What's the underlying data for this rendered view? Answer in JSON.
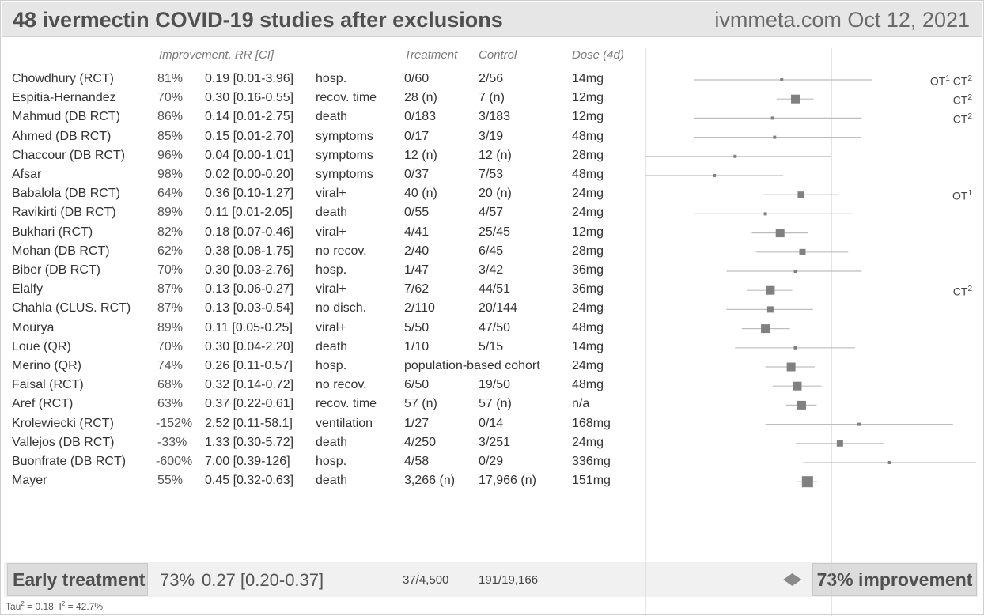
{
  "header": {
    "title": "48 ivermectin COVID-19 studies after exclusions",
    "source": "ivmmeta.com Oct 12, 2021"
  },
  "columns": {
    "improvement": "Improvement, RR [CI]",
    "treatment": "Treatment",
    "control": "Control",
    "dose": "Dose (4d)"
  },
  "chart_data": {
    "type": "forest",
    "x_scale": "log",
    "null_value": 1.0,
    "rows": [
      {
        "study": "Chowdhury (RCT)",
        "improvement": "81%",
        "rr_ci": "0.19 [0.01-3.96]",
        "outcome": "hosp.",
        "treatment": "0/60",
        "control": "2/56",
        "dose": "14mg",
        "rr": 0.19,
        "lo": 0.01,
        "hi": 3.96,
        "marker_size": 1,
        "notes": [
          "OT",
          "1",
          "CT",
          "2"
        ]
      },
      {
        "study": "Espitia-Hernandez",
        "improvement": "70%",
        "rr_ci": "0.30 [0.16-0.55]",
        "outcome": "recov. time",
        "treatment": "28 (n)",
        "control": "7 (n)",
        "dose": "12mg",
        "rr": 0.3,
        "lo": 0.16,
        "hi": 0.55,
        "marker_size": 3,
        "notes": [
          "",
          "",
          "CT",
          "2"
        ]
      },
      {
        "study": "Mahmud (DB RCT)",
        "improvement": "86%",
        "rr_ci": "0.14 [0.01-2.75]",
        "outcome": "death",
        "treatment": "0/183",
        "control": "3/183",
        "dose": "12mg",
        "rr": 0.14,
        "lo": 0.01,
        "hi": 2.75,
        "marker_size": 1,
        "notes": [
          "",
          "",
          "CT",
          "2"
        ]
      },
      {
        "study": "Ahmed (DB RCT)",
        "improvement": "85%",
        "rr_ci": "0.15 [0.01-2.70]",
        "outcome": "symptoms",
        "treatment": "0/17",
        "control": "3/19",
        "dose": "48mg",
        "rr": 0.15,
        "lo": 0.01,
        "hi": 2.7,
        "marker_size": 1,
        "notes": []
      },
      {
        "study": "Chaccour (DB RCT)",
        "improvement": "96%",
        "rr_ci": "0.04 [0.00-1.01]",
        "outcome": "symptoms",
        "treatment": "12 (n)",
        "control": "12 (n)",
        "dose": "28mg",
        "rr": 0.04,
        "lo": 0.002,
        "hi": 1.01,
        "marker_size": 1,
        "notes": []
      },
      {
        "study": "Afsar",
        "improvement": "98%",
        "rr_ci": "0.02 [0.00-0.20]",
        "outcome": "symptoms",
        "treatment": "0/37",
        "control": "7/53",
        "dose": "48mg",
        "rr": 0.02,
        "lo": 0.002,
        "hi": 0.2,
        "marker_size": 1,
        "notes": []
      },
      {
        "study": "Babalola (DB RCT)",
        "improvement": "64%",
        "rr_ci": "0.36 [0.10-1.27]",
        "outcome": "viral+",
        "treatment": "40 (n)",
        "control": "20 (n)",
        "dose": "24mg",
        "rr": 0.36,
        "lo": 0.1,
        "hi": 1.27,
        "marker_size": 2,
        "notes": [
          "OT",
          "1",
          "",
          ""
        ]
      },
      {
        "study": "Ravikirti (DB RCT)",
        "improvement": "89%",
        "rr_ci": "0.11 [0.01-2.05]",
        "outcome": "death",
        "treatment": "0/55",
        "control": "4/57",
        "dose": "24mg",
        "rr": 0.11,
        "lo": 0.01,
        "hi": 2.05,
        "marker_size": 1,
        "notes": []
      },
      {
        "study": "Bukhari (RCT)",
        "improvement": "82%",
        "rr_ci": "0.18 [0.07-0.46]",
        "outcome": "viral+",
        "treatment": "4/41",
        "control": "25/45",
        "dose": "12mg",
        "rr": 0.18,
        "lo": 0.07,
        "hi": 0.46,
        "marker_size": 3,
        "notes": []
      },
      {
        "study": "Mohan (DB RCT)",
        "improvement": "62%",
        "rr_ci": "0.38 [0.08-1.75]",
        "outcome": "no recov.",
        "treatment": "2/40",
        "control": "6/45",
        "dose": "28mg",
        "rr": 0.38,
        "lo": 0.08,
        "hi": 1.75,
        "marker_size": 2,
        "notes": []
      },
      {
        "study": "Biber (DB RCT)",
        "improvement": "70%",
        "rr_ci": "0.30 [0.03-2.76]",
        "outcome": "hosp.",
        "treatment": "1/47",
        "control": "3/42",
        "dose": "36mg",
        "rr": 0.3,
        "lo": 0.03,
        "hi": 2.76,
        "marker_size": 1,
        "notes": []
      },
      {
        "study": "Elalfy",
        "improvement": "87%",
        "rr_ci": "0.13 [0.06-0.27]",
        "outcome": "viral+",
        "treatment": "7/62",
        "control": "44/51",
        "dose": "36mg",
        "rr": 0.13,
        "lo": 0.06,
        "hi": 0.27,
        "marker_size": 3,
        "notes": [
          "",
          "",
          "CT",
          "2"
        ]
      },
      {
        "study": "Chahla (CLUS. RCT)",
        "improvement": "87%",
        "rr_ci": "0.13 [0.03-0.54]",
        "outcome": "no disch.",
        "treatment": "2/110",
        "control": "20/144",
        "dose": "24mg",
        "rr": 0.13,
        "lo": 0.03,
        "hi": 0.54,
        "marker_size": 2,
        "notes": []
      },
      {
        "study": "Mourya",
        "improvement": "89%",
        "rr_ci": "0.11 [0.05-0.25]",
        "outcome": "viral+",
        "treatment": "5/50",
        "control": "47/50",
        "dose": "48mg",
        "rr": 0.11,
        "lo": 0.05,
        "hi": 0.25,
        "marker_size": 3,
        "notes": []
      },
      {
        "study": "Loue (QR)",
        "improvement": "70%",
        "rr_ci": "0.30 [0.04-2.20]",
        "outcome": "death",
        "treatment": "1/10",
        "control": "5/15",
        "dose": "14mg",
        "rr": 0.3,
        "lo": 0.04,
        "hi": 2.2,
        "marker_size": 1,
        "notes": []
      },
      {
        "study": "Merino (QR)",
        "improvement": "74%",
        "rr_ci": "0.26 [0.11-0.57]",
        "outcome": "hosp.",
        "treatment": "population-based cohort",
        "control": "",
        "dose": "24mg",
        "rr": 0.26,
        "lo": 0.11,
        "hi": 0.57,
        "marker_size": 3,
        "notes": []
      },
      {
        "study": "Faisal (RCT)",
        "improvement": "68%",
        "rr_ci": "0.32 [0.14-0.72]",
        "outcome": "no recov.",
        "treatment": "6/50",
        "control": "19/50",
        "dose": "48mg",
        "rr": 0.32,
        "lo": 0.14,
        "hi": 0.72,
        "marker_size": 3,
        "notes": []
      },
      {
        "study": "Aref (RCT)",
        "improvement": "63%",
        "rr_ci": "0.37 [0.22-0.61]",
        "outcome": "recov. time",
        "treatment": "57 (n)",
        "control": "57 (n)",
        "dose": "n/a",
        "rr": 0.37,
        "lo": 0.22,
        "hi": 0.61,
        "marker_size": 3,
        "notes": []
      },
      {
        "study": "Krolewiecki (RCT)",
        "improvement": "-152%",
        "rr_ci": "2.52 [0.11-58.1]",
        "outcome": "ventilation",
        "treatment": "1/27",
        "control": "0/14",
        "dose": "168mg",
        "rr": 2.52,
        "lo": 0.11,
        "hi": 58.1,
        "marker_size": 1,
        "notes": []
      },
      {
        "study": "Vallejos (DB RCT)",
        "improvement": "-33%",
        "rr_ci": "1.33 [0.30-5.72]",
        "outcome": "death",
        "treatment": "4/250",
        "control": "3/251",
        "dose": "24mg",
        "rr": 1.33,
        "lo": 0.3,
        "hi": 5.72,
        "marker_size": 2,
        "notes": []
      },
      {
        "study": "Buonfrate (DB RCT)",
        "improvement": "-600%",
        "rr_ci": "7.00 [0.39-126]",
        "outcome": "hosp.",
        "treatment": "4/58",
        "control": "0/29",
        "dose": "336mg",
        "rr": 7.0,
        "lo": 0.39,
        "hi": 126,
        "marker_size": 1,
        "notes": []
      },
      {
        "study": "Mayer",
        "improvement": "55%",
        "rr_ci": "0.45 [0.32-0.63]",
        "outcome": "death",
        "treatment": "3,266 (n)",
        "control": "17,966 (n)",
        "dose": "151mg",
        "rr": 0.45,
        "lo": 0.32,
        "hi": 0.63,
        "marker_size": 4,
        "notes": []
      }
    ],
    "summary": {
      "label": "Early treatment",
      "improvement": "73%",
      "rr_ci": "0.27 [0.20-0.37]",
      "treatment": "37/4,500",
      "control": "191/19,166",
      "rr": 0.27,
      "lo": 0.2,
      "hi": 0.37,
      "improvement_text": "73% improvement"
    },
    "heterogeneity": {
      "tau_label": "Tau",
      "tau_exp": "2",
      "tau_value": " = 0.18; I",
      "i_exp": "2",
      "i_value": " = 42.7%"
    }
  }
}
